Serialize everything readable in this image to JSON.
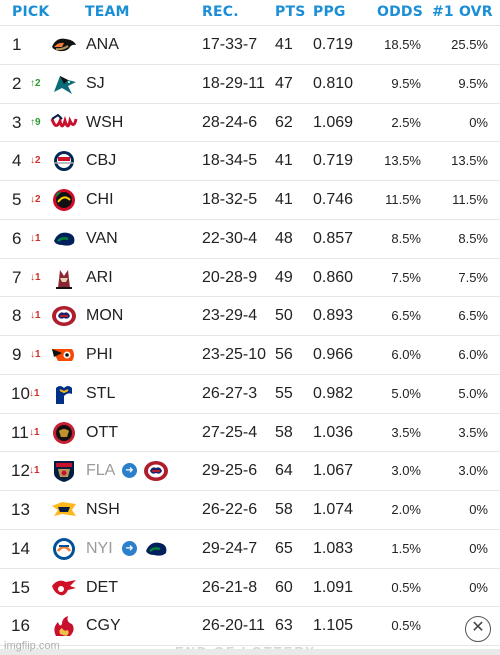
{
  "header": {
    "pick": "PICK",
    "team": "TEAM",
    "rec": "REC.",
    "pts": "PTS",
    "ppg": "PPG",
    "odds": "ODDS",
    "ovr": "#1 OVR"
  },
  "rows": [
    {
      "pick": "1",
      "move": "",
      "dir": "",
      "logo": "ducks-logo",
      "team": "ANA",
      "rec": "17-33-7",
      "pts": "41",
      "ppg": "0.719",
      "odds": "18.5%",
      "ovr": "25.5%"
    },
    {
      "pick": "2",
      "move": "↑2",
      "dir": "up",
      "logo": "sharks-logo",
      "team": "SJ",
      "rec": "18-29-11",
      "pts": "47",
      "ppg": "0.810",
      "odds": "9.5%",
      "ovr": "9.5%"
    },
    {
      "pick": "3",
      "move": "↑9",
      "dir": "up",
      "logo": "capitals-logo",
      "team": "WSH",
      "rec": "28-24-6",
      "pts": "62",
      "ppg": "1.069",
      "odds": "2.5%",
      "ovr": "0%"
    },
    {
      "pick": "4",
      "move": "↓2",
      "dir": "down",
      "logo": "blue-jackets-logo",
      "team": "CBJ",
      "rec": "18-34-5",
      "pts": "41",
      "ppg": "0.719",
      "odds": "13.5%",
      "ovr": "13.5%"
    },
    {
      "pick": "5",
      "move": "↓2",
      "dir": "down",
      "logo": "blackhawks-logo",
      "team": "CHI",
      "rec": "18-32-5",
      "pts": "41",
      "ppg": "0.746",
      "odds": "11.5%",
      "ovr": "11.5%"
    },
    {
      "pick": "6",
      "move": "↓1",
      "dir": "down",
      "logo": "canucks-logo",
      "team": "VAN",
      "rec": "22-30-4",
      "pts": "48",
      "ppg": "0.857",
      "odds": "8.5%",
      "ovr": "8.5%"
    },
    {
      "pick": "7",
      "move": "↓1",
      "dir": "down",
      "logo": "coyotes-logo",
      "team": "ARI",
      "rec": "20-28-9",
      "pts": "49",
      "ppg": "0.860",
      "odds": "7.5%",
      "ovr": "7.5%"
    },
    {
      "pick": "8",
      "move": "↓1",
      "dir": "down",
      "logo": "canadiens-logo",
      "team": "MON",
      "rec": "23-29-4",
      "pts": "50",
      "ppg": "0.893",
      "odds": "6.5%",
      "ovr": "6.5%"
    },
    {
      "pick": "9",
      "move": "↓1",
      "dir": "down",
      "logo": "flyers-logo",
      "team": "PHI",
      "rec": "23-25-10",
      "pts": "56",
      "ppg": "0.966",
      "odds": "6.0%",
      "ovr": "6.0%"
    },
    {
      "pick": "10",
      "move": "↓1",
      "dir": "down",
      "logo": "blues-logo",
      "team": "STL",
      "rec": "26-27-3",
      "pts": "55",
      "ppg": "0.982",
      "odds": "5.0%",
      "ovr": "5.0%"
    },
    {
      "pick": "11",
      "move": "↓1",
      "dir": "down",
      "logo": "senators-logo",
      "team": "OTT",
      "rec": "27-25-4",
      "pts": "58",
      "ppg": "1.036",
      "odds": "3.5%",
      "ovr": "3.5%"
    },
    {
      "pick": "12",
      "move": "↓1",
      "dir": "down",
      "logo": "panthers-logo",
      "team": "FLA",
      "traded_to": "canadiens-logo",
      "rec": "29-25-6",
      "pts": "64",
      "ppg": "1.067",
      "odds": "3.0%",
      "ovr": "3.0%"
    },
    {
      "pick": "13",
      "move": "",
      "dir": "",
      "logo": "predators-logo",
      "team": "NSH",
      "rec": "26-22-6",
      "pts": "58",
      "ppg": "1.074",
      "odds": "2.0%",
      "ovr": "0%"
    },
    {
      "pick": "14",
      "move": "",
      "dir": "",
      "logo": "islanders-logo",
      "team": "NYI",
      "traded_to": "canucks-logo",
      "rec": "29-24-7",
      "pts": "65",
      "ppg": "1.083",
      "odds": "1.5%",
      "ovr": "0%"
    },
    {
      "pick": "15",
      "move": "",
      "dir": "",
      "logo": "red-wings-logo",
      "team": "DET",
      "rec": "26-21-8",
      "pts": "60",
      "ppg": "1.091",
      "odds": "0.5%",
      "ovr": "0%"
    },
    {
      "pick": "16",
      "move": "",
      "dir": "",
      "logo": "flames-logo",
      "team": "CGY",
      "rec": "26-20-11",
      "pts": "63",
      "ppg": "1.105",
      "odds": "0.5%",
      "ovr": ""
    }
  ],
  "footer": {
    "watermark": "imgflip.com",
    "end_text": "END OF LOTTERY",
    "close_symbol": "✕"
  },
  "colors": {
    "header": "#1b8fd6",
    "up": "#2e9a2e",
    "down": "#d0302a",
    "trade_arrow": "#2b7fcb"
  }
}
